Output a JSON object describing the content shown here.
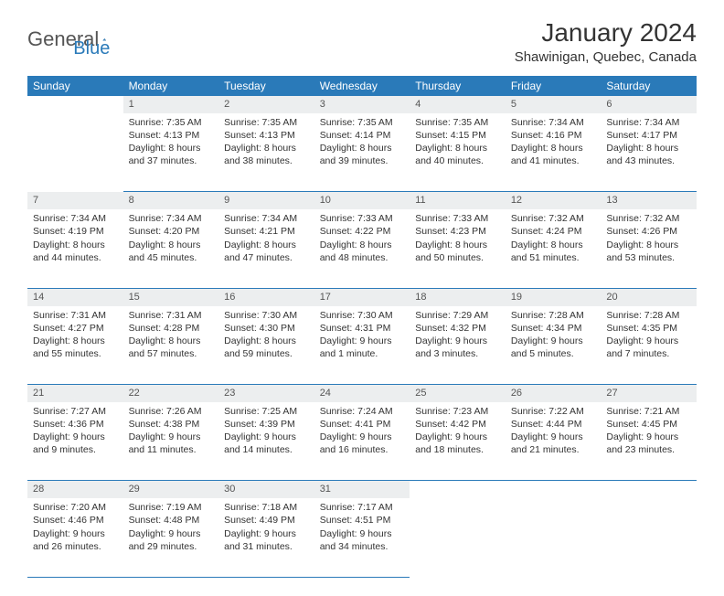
{
  "brand": {
    "part1": "General",
    "part2": "Blue"
  },
  "title": "January 2024",
  "location": "Shawinigan, Quebec, Canada",
  "colors": {
    "header_bg": "#2a7ab9",
    "header_fg": "#ffffff",
    "daynum_bg": "#eceeef",
    "rule": "#2a7ab9",
    "text": "#333333",
    "logo_gray": "#555555",
    "logo_blue": "#2a7ab9"
  },
  "weekdays": [
    "Sunday",
    "Monday",
    "Tuesday",
    "Wednesday",
    "Thursday",
    "Friday",
    "Saturday"
  ],
  "weeks": [
    [
      null,
      {
        "d": "1",
        "sr": "7:35 AM",
        "ss": "4:13 PM",
        "dl": "8 hours and 37 minutes."
      },
      {
        "d": "2",
        "sr": "7:35 AM",
        "ss": "4:13 PM",
        "dl": "8 hours and 38 minutes."
      },
      {
        "d": "3",
        "sr": "7:35 AM",
        "ss": "4:14 PM",
        "dl": "8 hours and 39 minutes."
      },
      {
        "d": "4",
        "sr": "7:35 AM",
        "ss": "4:15 PM",
        "dl": "8 hours and 40 minutes."
      },
      {
        "d": "5",
        "sr": "7:34 AM",
        "ss": "4:16 PM",
        "dl": "8 hours and 41 minutes."
      },
      {
        "d": "6",
        "sr": "7:34 AM",
        "ss": "4:17 PM",
        "dl": "8 hours and 43 minutes."
      }
    ],
    [
      {
        "d": "7",
        "sr": "7:34 AM",
        "ss": "4:19 PM",
        "dl": "8 hours and 44 minutes."
      },
      {
        "d": "8",
        "sr": "7:34 AM",
        "ss": "4:20 PM",
        "dl": "8 hours and 45 minutes."
      },
      {
        "d": "9",
        "sr": "7:34 AM",
        "ss": "4:21 PM",
        "dl": "8 hours and 47 minutes."
      },
      {
        "d": "10",
        "sr": "7:33 AM",
        "ss": "4:22 PM",
        "dl": "8 hours and 48 minutes."
      },
      {
        "d": "11",
        "sr": "7:33 AM",
        "ss": "4:23 PM",
        "dl": "8 hours and 50 minutes."
      },
      {
        "d": "12",
        "sr": "7:32 AM",
        "ss": "4:24 PM",
        "dl": "8 hours and 51 minutes."
      },
      {
        "d": "13",
        "sr": "7:32 AM",
        "ss": "4:26 PM",
        "dl": "8 hours and 53 minutes."
      }
    ],
    [
      {
        "d": "14",
        "sr": "7:31 AM",
        "ss": "4:27 PM",
        "dl": "8 hours and 55 minutes."
      },
      {
        "d": "15",
        "sr": "7:31 AM",
        "ss": "4:28 PM",
        "dl": "8 hours and 57 minutes."
      },
      {
        "d": "16",
        "sr": "7:30 AM",
        "ss": "4:30 PM",
        "dl": "8 hours and 59 minutes."
      },
      {
        "d": "17",
        "sr": "7:30 AM",
        "ss": "4:31 PM",
        "dl": "9 hours and 1 minute."
      },
      {
        "d": "18",
        "sr": "7:29 AM",
        "ss": "4:32 PM",
        "dl": "9 hours and 3 minutes."
      },
      {
        "d": "19",
        "sr": "7:28 AM",
        "ss": "4:34 PM",
        "dl": "9 hours and 5 minutes."
      },
      {
        "d": "20",
        "sr": "7:28 AM",
        "ss": "4:35 PM",
        "dl": "9 hours and 7 minutes."
      }
    ],
    [
      {
        "d": "21",
        "sr": "7:27 AM",
        "ss": "4:36 PM",
        "dl": "9 hours and 9 minutes."
      },
      {
        "d": "22",
        "sr": "7:26 AM",
        "ss": "4:38 PM",
        "dl": "9 hours and 11 minutes."
      },
      {
        "d": "23",
        "sr": "7:25 AM",
        "ss": "4:39 PM",
        "dl": "9 hours and 14 minutes."
      },
      {
        "d": "24",
        "sr": "7:24 AM",
        "ss": "4:41 PM",
        "dl": "9 hours and 16 minutes."
      },
      {
        "d": "25",
        "sr": "7:23 AM",
        "ss": "4:42 PM",
        "dl": "9 hours and 18 minutes."
      },
      {
        "d": "26",
        "sr": "7:22 AM",
        "ss": "4:44 PM",
        "dl": "9 hours and 21 minutes."
      },
      {
        "d": "27",
        "sr": "7:21 AM",
        "ss": "4:45 PM",
        "dl": "9 hours and 23 minutes."
      }
    ],
    [
      {
        "d": "28",
        "sr": "7:20 AM",
        "ss": "4:46 PM",
        "dl": "9 hours and 26 minutes."
      },
      {
        "d": "29",
        "sr": "7:19 AM",
        "ss": "4:48 PM",
        "dl": "9 hours and 29 minutes."
      },
      {
        "d": "30",
        "sr": "7:18 AM",
        "ss": "4:49 PM",
        "dl": "9 hours and 31 minutes."
      },
      {
        "d": "31",
        "sr": "7:17 AM",
        "ss": "4:51 PM",
        "dl": "9 hours and 34 minutes."
      },
      null,
      null,
      null
    ]
  ],
  "labels": {
    "sunrise": "Sunrise:",
    "sunset": "Sunset:",
    "daylight": "Daylight:"
  }
}
